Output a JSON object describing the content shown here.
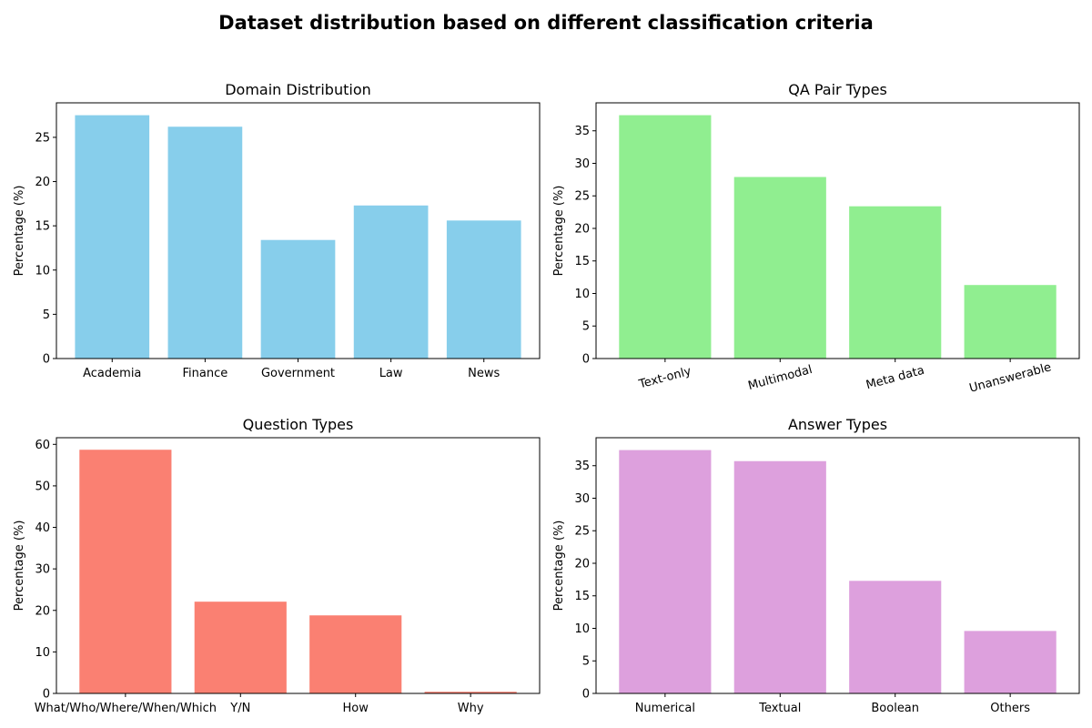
{
  "figure": {
    "title": "Dataset distribution based on different classification criteria"
  },
  "chart_data": [
    {
      "type": "bar",
      "title": "Domain Distribution",
      "xlabel": "",
      "ylabel": "Percentage (%)",
      "categories": [
        "Academia",
        "Finance",
        "Government",
        "Law",
        "News"
      ],
      "values": [
        27.5,
        26.2,
        13.4,
        17.3,
        15.6
      ],
      "ylim": [
        0,
        28.9
      ],
      "yticks": [
        0,
        5,
        10,
        15,
        20,
        25
      ],
      "color": "#87CEEB",
      "xtick_rotation": 0,
      "grid": false
    },
    {
      "type": "bar",
      "title": "QA Pair Types",
      "xlabel": "",
      "ylabel": "Percentage (%)",
      "categories": [
        "Text-only",
        "Multimodal",
        "Meta data",
        "Unanswerable"
      ],
      "values": [
        37.4,
        27.9,
        23.4,
        11.3
      ],
      "ylim": [
        0,
        39.3
      ],
      "yticks": [
        0,
        5,
        10,
        15,
        20,
        25,
        30,
        35
      ],
      "color": "#90EE90",
      "xtick_rotation": 15,
      "grid": false
    },
    {
      "type": "bar",
      "title": "Question Types",
      "xlabel": "",
      "ylabel": "Percentage (%)",
      "categories": [
        "What/Who/Where/When/Which",
        "Y/N",
        "How",
        "Why"
      ],
      "values": [
        58.7,
        22.1,
        18.8,
        0.4
      ],
      "ylim": [
        0,
        61.6
      ],
      "yticks": [
        0,
        10,
        20,
        30,
        40,
        50,
        60
      ],
      "color": "#FA8072",
      "xtick_rotation": 0,
      "grid": false
    },
    {
      "type": "bar",
      "title": "Answer Types",
      "xlabel": "",
      "ylabel": "Percentage (%)",
      "categories": [
        "Numerical",
        "Textual",
        "Boolean",
        "Others"
      ],
      "values": [
        37.4,
        35.7,
        17.3,
        9.6
      ],
      "ylim": [
        0,
        39.3
      ],
      "yticks": [
        0,
        5,
        10,
        15,
        20,
        25,
        30,
        35
      ],
      "color": "#DDA0DD",
      "xtick_rotation": 0,
      "grid": false
    }
  ]
}
